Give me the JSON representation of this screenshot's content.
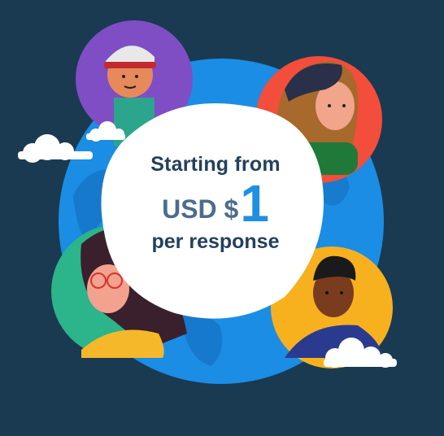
{
  "promo": {
    "line1": "Starting from",
    "currency": "USD $",
    "amount": "1",
    "line3": "per response"
  },
  "colors": {
    "background": "#1a3a52",
    "globe": "#1b8de4",
    "amount_accent": "#1f8fe0",
    "text_dark": "#24405c"
  }
}
